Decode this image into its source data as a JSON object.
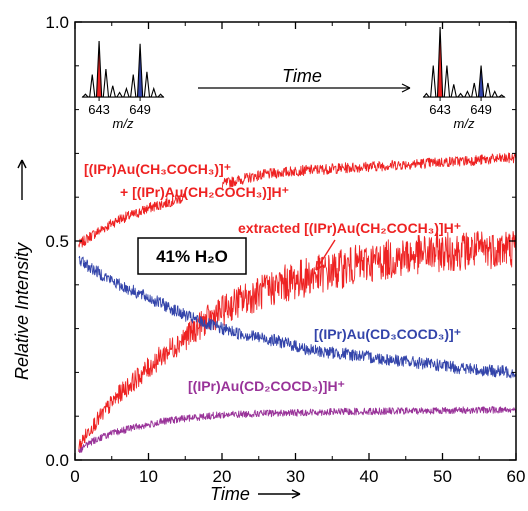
{
  "chart_data": {
    "type": "line",
    "xlabel": "Time",
    "ylabel": "Relative Intensity",
    "xlim": [
      0,
      60
    ],
    "ylim": [
      0,
      1.0
    ],
    "xticks": [
      "0",
      "10",
      "20",
      "30",
      "40",
      "50",
      "60"
    ],
    "yticks": [
      "0.0",
      "0.5",
      "1.0"
    ],
    "grid": false,
    "annotation": "41% H₂O",
    "series": [
      {
        "name": "[(IPr)Au(CH₃COCH₃)]⁺ + [(IPr)Au(CH₂COCH₃)]H⁺",
        "name_parts": [
          "[(IPr)Au(CH₃COCH₃)]⁺",
          "+ [(IPr)Au(CH₂COCH₃)]H⁺"
        ],
        "color": "#ee2222",
        "x": [
          0.5,
          2,
          4,
          6,
          8,
          10,
          12,
          14,
          15,
          20,
          25,
          30,
          35,
          40,
          45,
          50,
          55,
          60
        ],
        "y": [
          0.49,
          0.51,
          0.53,
          0.55,
          0.56,
          0.575,
          0.585,
          0.595,
          0.6,
          0.63,
          0.65,
          0.66,
          0.665,
          0.67,
          0.675,
          0.68,
          0.685,
          0.69
        ]
      },
      {
        "name": "extracted [(IPr)Au(CH₂COCH₃)]H⁺",
        "color": "#ee2222",
        "x": [
          0.5,
          2,
          4,
          6,
          8,
          10,
          12,
          15,
          18,
          20,
          22,
          25,
          28,
          30,
          32,
          35,
          38,
          40,
          45,
          50,
          55,
          60
        ],
        "y": [
          0.03,
          0.07,
          0.11,
          0.15,
          0.18,
          0.21,
          0.24,
          0.28,
          0.32,
          0.34,
          0.36,
          0.38,
          0.4,
          0.41,
          0.42,
          0.43,
          0.445,
          0.45,
          0.465,
          0.475,
          0.48,
          0.485
        ]
      },
      {
        "name": "[(IPr)Au(CD₃COCD₃)]⁺",
        "color": "#3344aa",
        "x": [
          0.5,
          2,
          4,
          6,
          8,
          10,
          12,
          15,
          18,
          20,
          22,
          25,
          28,
          30,
          32,
          35,
          38,
          40,
          45,
          50,
          55,
          60
        ],
        "y": [
          0.46,
          0.44,
          0.42,
          0.4,
          0.385,
          0.37,
          0.355,
          0.33,
          0.31,
          0.3,
          0.29,
          0.28,
          0.27,
          0.26,
          0.25,
          0.245,
          0.24,
          0.235,
          0.225,
          0.215,
          0.205,
          0.2
        ]
      },
      {
        "name": "[(IPr)Au(CD₂COCD₃)]H⁺",
        "color": "#993399",
        "x": [
          0.5,
          2,
          4,
          6,
          8,
          10,
          12,
          15,
          18,
          20,
          25,
          30,
          35,
          40,
          45,
          50,
          55,
          60
        ],
        "y": [
          0.02,
          0.04,
          0.055,
          0.065,
          0.075,
          0.08,
          0.088,
          0.095,
          0.1,
          0.103,
          0.106,
          0.108,
          0.11,
          0.111,
          0.112,
          0.113,
          0.114,
          0.115
        ]
      }
    ],
    "inset": {
      "label": "Time",
      "unit": "m/z",
      "ticks": [
        "643",
        "649"
      ],
      "early_spectrum": {
        "x": [
          641,
          642,
          643,
          644,
          645,
          646,
          647,
          648,
          649,
          650,
          651,
          652
        ],
        "y": [
          0.05,
          0.4,
          1.0,
          0.5,
          0.2,
          0.08,
          0.15,
          0.4,
          0.95,
          0.45,
          0.15,
          0.05
        ]
      },
      "late_spectrum": {
        "x": [
          641,
          642,
          643,
          644,
          645,
          646,
          647,
          648,
          649,
          650,
          651,
          652
        ],
        "y": [
          0.05,
          0.45,
          1.0,
          0.45,
          0.18,
          0.05,
          0.08,
          0.2,
          0.45,
          0.2,
          0.08,
          0.03
        ]
      }
    }
  }
}
